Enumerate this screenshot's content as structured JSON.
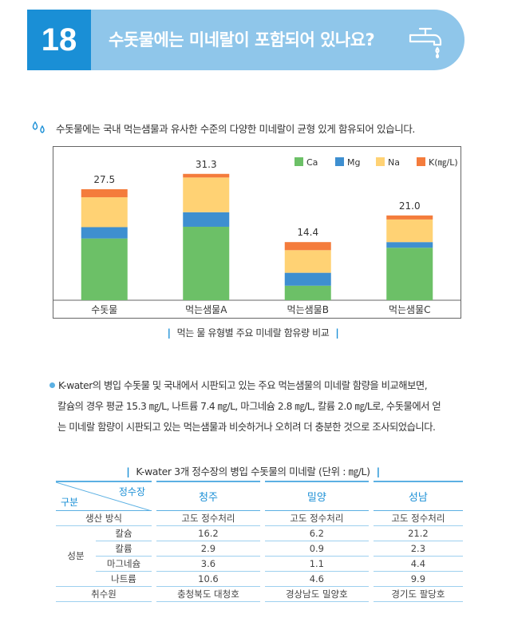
{
  "header": {
    "number": "18",
    "title": "수돗물에는 미네랄이 포함되어 있나요?",
    "icon": "faucet-icon"
  },
  "intro": {
    "icon": "water-drops-icon",
    "text": "수돗물에는 국내 먹는샘물과 유사한 수준의 다양한 미네랄이 균형 있게 함유되어 있습니다."
  },
  "chart_data": {
    "type": "bar",
    "stacked": true,
    "categories": [
      "수돗물",
      "먹는샘물A",
      "먹는샘물B",
      "먹는샘물C"
    ],
    "series": [
      {
        "name": "Ca",
        "color": "#6cc067",
        "values": [
          15.3,
          18.2,
          3.6,
          13.0
        ]
      },
      {
        "name": "Mg",
        "color": "#3e8fd0",
        "values": [
          2.8,
          3.6,
          3.2,
          1.4
        ]
      },
      {
        "name": "Na",
        "color": "#ffd274",
        "values": [
          7.4,
          8.6,
          5.6,
          5.6
        ]
      },
      {
        "name": "K(㎎/L)",
        "color": "#f47c3c",
        "values": [
          2.0,
          0.9,
          2.0,
          1.0
        ]
      }
    ],
    "totals": [
      "27.5",
      "31.3",
      "14.4",
      "21.0"
    ],
    "ylim": [
      0,
      36
    ],
    "legend_position": "top-right",
    "caption": "먹는 물 유형별 주요 미네랄 함유량 비교"
  },
  "paragraph": {
    "lines": [
      "K-water의 병입 수돗물 및 국내에서 시판되고 있는 주요 먹는샘물의 미네랄 함량을 비교해보면,",
      "칼슘의 경우 평균 15.3 ㎎/L, 나트륨 7.4 ㎎/L, 마그네슘 2.8 ㎎/L, 칼륨 2.0 ㎎/L로, 수돗물에서 얻",
      "는 미네랄 함량이 시판되고 있는 먹는샘물과 비슷하거나 오히려 더 충분한 것으로 조사되었습니다."
    ]
  },
  "table": {
    "caption": "K-water 3개 정수장의 병입 수돗물의 미네랄 (단위 : ㎎/L)",
    "corner_top": "정수장",
    "corner_bottom": "구분",
    "columns": [
      "청주",
      "밀양",
      "성남"
    ],
    "rows": [
      {
        "label": "생산 방식",
        "values": [
          "고도 정수처리",
          "고도 정수처리",
          "고도 정수처리"
        ]
      },
      {
        "group": "성분",
        "label": "칼슘",
        "values": [
          "16.2",
          "6.2",
          "21.2"
        ]
      },
      {
        "group": "성분",
        "label": "칼륨",
        "values": [
          "2.9",
          "0.9",
          "2.3"
        ]
      },
      {
        "group": "성분",
        "label": "마그네슘",
        "values": [
          "3.6",
          "1.1",
          "4.4"
        ]
      },
      {
        "group": "성분",
        "label": "나트륨",
        "values": [
          "10.6",
          "4.6",
          "9.9"
        ]
      },
      {
        "label": "취수원",
        "values": [
          "충청북도 대청호",
          "경상남도 밀양호",
          "경기도 팔당호"
        ]
      }
    ]
  }
}
